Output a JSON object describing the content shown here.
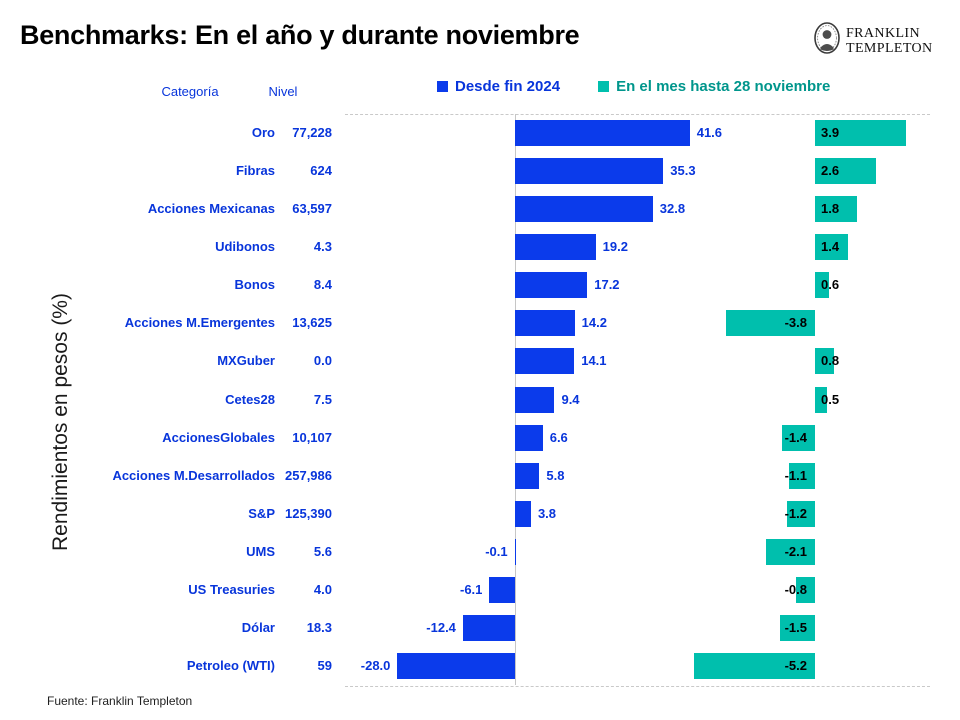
{
  "header": {
    "title": "Benchmarks: En el año y durante noviembre",
    "logo": {
      "line1": "FRANKLIN",
      "line2": "TEMPLETON"
    }
  },
  "table": {
    "category_header": "Categoría",
    "level_header": "Nivel"
  },
  "y_axis_label": "Rendimientos en pesos (%)",
  "source": "Fuente: Franklin Templeton",
  "chart_data": {
    "type": "bar",
    "orientation": "horizontal",
    "title": "Benchmarks: En el año y durante noviembre",
    "value_label_decimals": 1,
    "legend_position": "top",
    "grid": "dashed top and bottom frame, vertical zero axis line",
    "categories": [
      "Oro",
      "Fibras",
      "Acciones Mexicanas",
      "Udibonos",
      "Bonos",
      "Acciones M.Emergentes",
      "MXGuber",
      "Cetes28",
      "AccionesGlobales",
      "Acciones M.Desarrollados",
      "S&P",
      "UMS",
      "US Treasuries",
      "Dólar",
      "Petroleo (WTI)"
    ],
    "levels": [
      "77,228",
      "624",
      "63,597",
      "4.3",
      "8.4",
      "13,625",
      "0.0",
      "7.5",
      "10,107",
      "257,986",
      "125,390",
      "5.6",
      "4.0",
      "18.3",
      "59"
    ],
    "series": [
      {
        "name": "Desde fin 2024",
        "color": "#0b3beb",
        "label_color": "#0835db",
        "legend_text_color": "#0835db",
        "values": [
          41.6,
          35.3,
          32.8,
          19.2,
          17.2,
          14.2,
          14.1,
          9.4,
          6.6,
          5.8,
          3.8,
          -0.1,
          -6.1,
          -12.4,
          -28.0
        ]
      },
      {
        "name": "En el mes hasta 28 noviembre",
        "color": "#00bfad",
        "label_color": "#000000",
        "legend_text_color": "#00968c",
        "values": [
          3.9,
          2.6,
          1.8,
          1.4,
          0.6,
          -3.8,
          0.8,
          0.5,
          -1.4,
          -1.1,
          -1.2,
          -2.1,
          -0.8,
          -1.5,
          -5.2
        ]
      }
    ],
    "xlim_series_1": [
      -30,
      45
    ],
    "xlim_series_2": [
      -5.5,
      4.2
    ]
  }
}
